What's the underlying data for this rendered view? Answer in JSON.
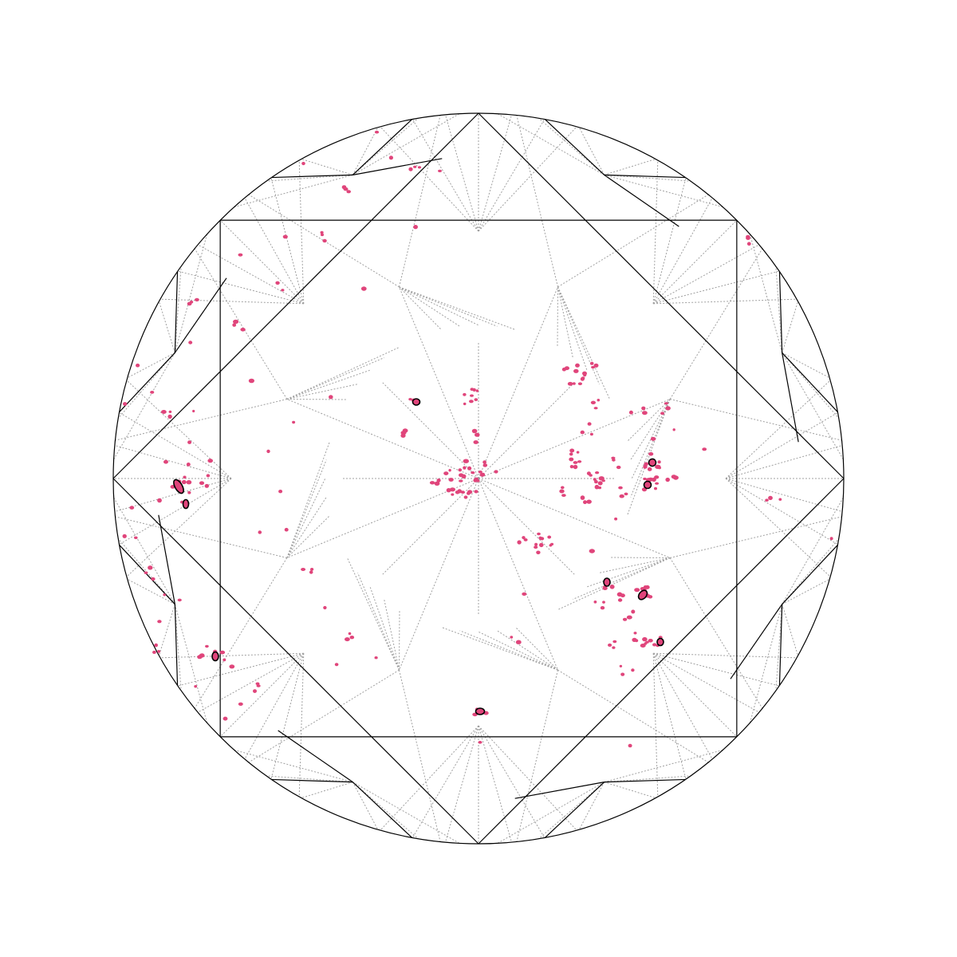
{
  "diagram": {
    "kind": "round brilliant diamond clarity plot (crown view)",
    "colors": {
      "background": "#ffffff",
      "facet_outline": "#000000",
      "facet_guides": "#a0a0a0",
      "inclusion_fill": "#e0457b",
      "inclusion_outline": "#000000"
    },
    "labels": []
  }
}
